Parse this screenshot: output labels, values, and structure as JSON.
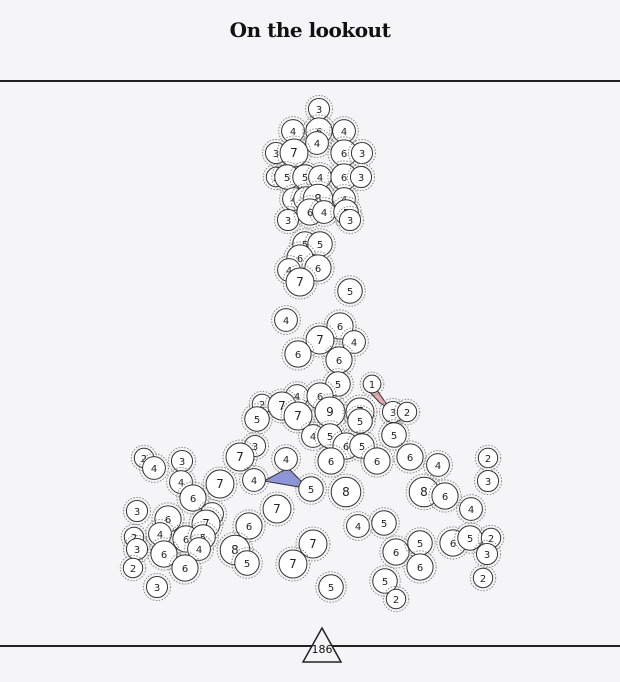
{
  "header": {
    "title": "On the lookout"
  },
  "footer": {
    "page_number": "186"
  },
  "colors": {
    "background": "#f5f4f6",
    "node_fill": "#ffffff",
    "node_stroke": "#333333",
    "halo_stroke": "#8a8a8a",
    "polygon_blue": "#8e96d9",
    "polygon_pink": "#e6a9b3"
  },
  "nodes": [
    {
      "v": "3"
    },
    {
      "v": "4"
    },
    {
      "v": "6"
    },
    {
      "v": "4"
    },
    {
      "v": "4"
    },
    {
      "v": "3"
    },
    {
      "v": "7"
    },
    {
      "v": "6"
    },
    {
      "v": "3"
    },
    {
      "v": "2"
    },
    {
      "v": "5"
    },
    {
      "v": "5"
    },
    {
      "v": "4"
    },
    {
      "v": "6"
    },
    {
      "v": "3"
    },
    {
      "v": "4"
    },
    {
      "v": "5"
    },
    {
      "v": "8"
    },
    {
      "v": "4"
    },
    {
      "v": "3"
    },
    {
      "v": "6"
    },
    {
      "v": "4"
    },
    {
      "v": "5"
    },
    {
      "v": "3"
    },
    {
      "v": "5"
    },
    {
      "v": "5"
    },
    {
      "v": "6"
    },
    {
      "v": "4"
    },
    {
      "v": "6"
    },
    {
      "v": "7"
    },
    {
      "v": "5"
    },
    {
      "v": "4"
    },
    {
      "v": "6"
    },
    {
      "v": "7"
    },
    {
      "v": "4"
    },
    {
      "v": "6"
    },
    {
      "v": "6"
    },
    {
      "v": "5"
    },
    {
      "v": "1"
    },
    {
      "v": "4"
    },
    {
      "v": "6"
    },
    {
      "v": "2"
    },
    {
      "v": "7"
    },
    {
      "v": "7"
    },
    {
      "v": "9"
    },
    {
      "v": "7"
    },
    {
      "v": "3"
    },
    {
      "v": "2"
    },
    {
      "v": "5"
    },
    {
      "v": "5"
    },
    {
      "v": "4"
    },
    {
      "v": "5"
    },
    {
      "v": "6"
    },
    {
      "v": "5"
    },
    {
      "v": "5"
    },
    {
      "v": "3"
    },
    {
      "v": "7"
    },
    {
      "v": "4"
    },
    {
      "v": "6"
    },
    {
      "v": "6"
    },
    {
      "v": "6"
    },
    {
      "v": "4"
    },
    {
      "v": "2"
    },
    {
      "v": "2"
    },
    {
      "v": "4"
    },
    {
      "v": "3"
    },
    {
      "v": "4"
    },
    {
      "v": "7"
    },
    {
      "v": "6"
    },
    {
      "v": "4"
    },
    {
      "v": "5"
    },
    {
      "v": "8"
    },
    {
      "v": "8"
    },
    {
      "v": "6"
    },
    {
      "v": "4"
    },
    {
      "v": "3"
    },
    {
      "v": "6"
    },
    {
      "v": "4"
    },
    {
      "v": "7"
    },
    {
      "v": "7"
    },
    {
      "v": "6"
    },
    {
      "v": "4"
    },
    {
      "v": "5"
    },
    {
      "v": "4"
    },
    {
      "v": "2"
    },
    {
      "v": "6"
    },
    {
      "v": "3"
    },
    {
      "v": "6"
    },
    {
      "v": "5"
    },
    {
      "v": "4"
    },
    {
      "v": "8"
    },
    {
      "v": "7"
    },
    {
      "v": "6"
    },
    {
      "v": "5"
    },
    {
      "v": "6"
    },
    {
      "v": "6"
    },
    {
      "v": "5"
    },
    {
      "v": "2"
    },
    {
      "v": "2"
    },
    {
      "v": "5"
    },
    {
      "v": "5"
    },
    {
      "v": "7"
    },
    {
      "v": "3"
    },
    {
      "v": "6"
    },
    {
      "v": "3"
    },
    {
      "v": "5"
    },
    {
      "v": "2"
    },
    {
      "v": "2"
    },
    {
      "v": "3"
    }
  ]
}
